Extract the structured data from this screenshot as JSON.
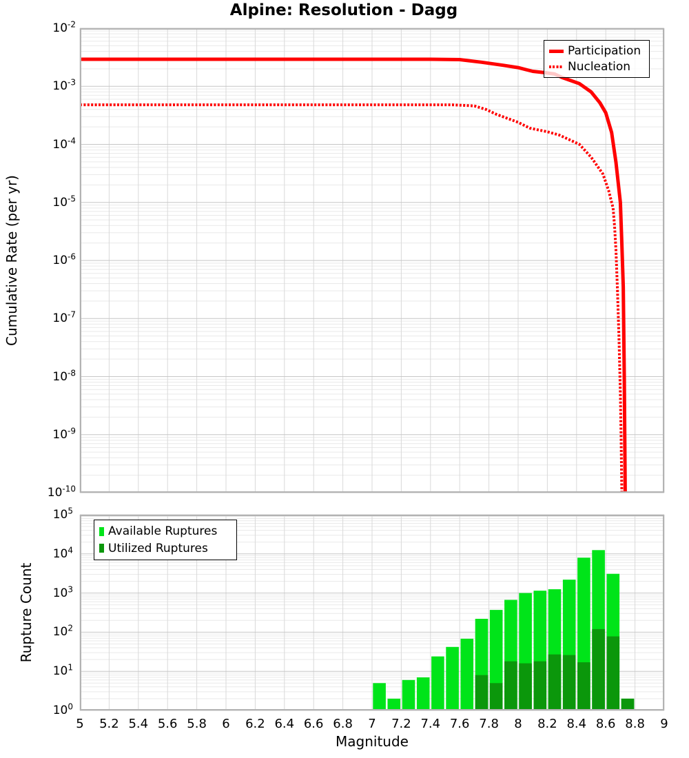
{
  "title": "Alpine: Resolution - Dagg",
  "axes": {
    "xlabel": "Magnitude",
    "top_ylabel": "Cumulative Rate (per yr)",
    "bottom_ylabel": "Rupture Count",
    "x_tick_labels": [
      "5",
      "5.2",
      "5.4",
      "5.6",
      "5.8",
      "6",
      "6.2",
      "6.4",
      "6.6",
      "6.8",
      "7",
      "7.2",
      "7.4",
      "7.6",
      "7.8",
      "8",
      "8.2",
      "8.4",
      "8.6",
      "8.8",
      "9"
    ],
    "top_y_exponents": [
      -2,
      -3,
      -4,
      -5,
      -6,
      -7,
      -8,
      -9,
      -10
    ],
    "bottom_y_exponents": [
      5,
      4,
      3,
      2,
      1,
      0
    ]
  },
  "legends": {
    "top": {
      "items": [
        {
          "label": "Participation",
          "style": "solid"
        },
        {
          "label": "Nucleation",
          "style": "dotted"
        }
      ]
    },
    "bottom": {
      "items": [
        {
          "label": "Available Ruptures",
          "color": "#00e419"
        },
        {
          "label": "Utilized Ruptures",
          "color": "#0b970b"
        }
      ]
    }
  },
  "colors": {
    "line_red": "#ff0000",
    "available_green": "#00e419",
    "utilized_green": "#0b970b",
    "grid_major": "#c6c6c6",
    "grid_minor": "#e9e9e9",
    "grid_vertical": "#d9d9d9",
    "spine": "#b3b3b3",
    "text": "#000000"
  },
  "chart_data": [
    {
      "type": "line",
      "title": "Alpine: Resolution - Dagg",
      "xlabel": "Magnitude",
      "ylabel": "Cumulative Rate (per yr)",
      "xlim": [
        5,
        9
      ],
      "ylim": [
        1e-10,
        0.01
      ],
      "x_tick_step": 0.2,
      "grid": true,
      "legend_position": "top-right",
      "series": [
        {
          "name": "Nucleation",
          "style": "dotted",
          "color": "#ff0000",
          "points": [
            [
              5.0,
              0.00048
            ],
            [
              6.0,
              0.00048
            ],
            [
              7.0,
              0.00048
            ],
            [
              7.55,
              0.00048
            ],
            [
              7.7,
              0.00046
            ],
            [
              7.78,
              0.0004
            ],
            [
              7.85,
              0.00033
            ],
            [
              8.0,
              0.00024
            ],
            [
              8.08,
              0.00019
            ],
            [
              8.2,
              0.000165
            ],
            [
              8.28,
              0.000145
            ],
            [
              8.42,
              0.0001
            ],
            [
              8.5,
              6e-05
            ],
            [
              8.58,
              3.1e-05
            ],
            [
              8.62,
              1.6e-05
            ],
            [
              8.65,
              8e-06
            ],
            [
              8.66,
              4e-06
            ],
            [
              8.67,
              1.5e-06
            ],
            [
              8.68,
              3e-07
            ],
            [
              8.69,
              5e-08
            ],
            [
              8.7,
              5e-09
            ],
            [
              8.705,
              8e-10
            ],
            [
              8.71,
              1e-10
            ]
          ]
        },
        {
          "name": "Participation",
          "style": "solid",
          "color": "#ff0000",
          "points": [
            [
              5.0,
              0.00292
            ],
            [
              6.0,
              0.00292
            ],
            [
              7.0,
              0.00292
            ],
            [
              7.4,
              0.00292
            ],
            [
              7.6,
              0.00288
            ],
            [
              7.75,
              0.0026
            ],
            [
              7.9,
              0.0023
            ],
            [
              8.0,
              0.0021
            ],
            [
              8.1,
              0.00181
            ],
            [
              8.18,
              0.00172
            ],
            [
              8.25,
              0.00163
            ],
            [
              8.3,
              0.00142
            ],
            [
              8.42,
              0.00111
            ],
            [
              8.5,
              0.0008
            ],
            [
              8.56,
              0.00052
            ],
            [
              8.6,
              0.00035
            ],
            [
              8.64,
              0.00016
            ],
            [
              8.67,
              4.9e-05
            ],
            [
              8.7,
              1e-05
            ],
            [
              8.71,
              2e-06
            ],
            [
              8.72,
              3.5e-07
            ],
            [
              8.727,
              9e-09
            ],
            [
              8.733,
              1e-10
            ]
          ]
        }
      ]
    },
    {
      "type": "bar",
      "xlabel": "Magnitude",
      "ylabel": "Rupture Count",
      "xlim": [
        5,
        9
      ],
      "ylim": [
        1,
        100000
      ],
      "bin_width": 0.1,
      "grid": true,
      "legend_position": "top-left",
      "categories": [
        7.0,
        7.1,
        7.2,
        7.3,
        7.4,
        7.5,
        7.6,
        7.7,
        7.8,
        7.9,
        8.0,
        8.1,
        8.2,
        8.3,
        8.4,
        8.5,
        8.6,
        8.7
      ],
      "series": [
        {
          "name": "Available Ruptures",
          "color": "#00e419",
          "values": [
            5,
            2,
            6,
            7,
            24,
            42,
            68,
            220,
            370,
            670,
            1000,
            1150,
            1250,
            2200,
            8000,
            12500,
            3100,
            2
          ]
        },
        {
          "name": "Utilized Ruptures",
          "color": "#0b970b",
          "values": [
            0,
            0,
            0,
            0,
            0,
            0,
            0,
            8,
            5,
            18,
            16,
            18,
            27,
            26,
            17,
            120,
            78,
            2
          ]
        }
      ]
    }
  ]
}
